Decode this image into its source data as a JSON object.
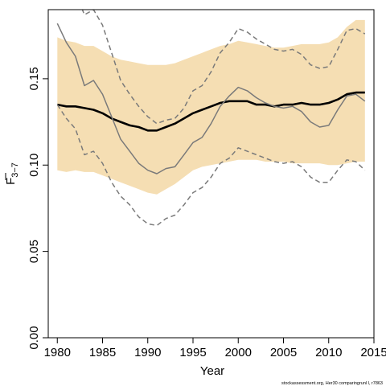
{
  "chart_data": {
    "type": "line",
    "xlabel": "Year",
    "ylabel": "F",
    "ylabel_subscript": "3−7",
    "xlim": [
      1979,
      2015
    ],
    "ylim": [
      0,
      0.19
    ],
    "xticks": [
      "1980",
      "1985",
      "1990",
      "1995",
      "2000",
      "2005",
      "2010",
      "2015"
    ],
    "yticks": [
      "0.00",
      "0.05",
      "0.10",
      "0.15"
    ],
    "grid": false,
    "legend": "none",
    "x": [
      1980,
      1981,
      1982,
      1983,
      1984,
      1985,
      1986,
      1987,
      1988,
      1989,
      1990,
      1991,
      1992,
      1993,
      1994,
      1995,
      1996,
      1997,
      1998,
      1999,
      2000,
      2001,
      2002,
      2003,
      2004,
      2005,
      2006,
      2007,
      2008,
      2009,
      2010,
      2011,
      2012,
      2013,
      2014
    ],
    "series": [
      {
        "role": "confidence band",
        "color": "#f5deb3",
        "lower": [
          0.097,
          0.096,
          0.097,
          0.096,
          0.096,
          0.094,
          0.092,
          0.09,
          0.088,
          0.086,
          0.084,
          0.083,
          0.086,
          0.089,
          0.093,
          0.097,
          0.099,
          0.1,
          0.101,
          0.102,
          0.103,
          0.103,
          0.103,
          0.102,
          0.102,
          0.102,
          0.101,
          0.101,
          0.101,
          0.101,
          0.1,
          0.1,
          0.101,
          0.102,
          0.102
        ],
        "upper": [
          0.174,
          0.172,
          0.171,
          0.169,
          0.169,
          0.166,
          0.163,
          0.161,
          0.16,
          0.159,
          0.158,
          0.158,
          0.158,
          0.159,
          0.161,
          0.163,
          0.165,
          0.167,
          0.169,
          0.17,
          0.172,
          0.171,
          0.17,
          0.169,
          0.168,
          0.168,
          0.169,
          0.17,
          0.17,
          0.17,
          0.171,
          0.174,
          0.18,
          0.184,
          0.184
        ]
      },
      {
        "role": "estimate",
        "color": "#000000",
        "values": [
          0.135,
          0.134,
          0.134,
          0.133,
          0.132,
          0.13,
          0.127,
          0.125,
          0.123,
          0.122,
          0.12,
          0.12,
          0.122,
          0.124,
          0.127,
          0.13,
          0.132,
          0.134,
          0.136,
          0.137,
          0.137,
          0.137,
          0.135,
          0.135,
          0.134,
          0.135,
          0.135,
          0.136,
          0.135,
          0.135,
          0.136,
          0.138,
          0.141,
          0.142,
          0.142
        ]
      },
      {
        "role": "comparison",
        "color": "#7a7a7a",
        "values": [
          0.182,
          0.171,
          0.163,
          0.146,
          0.149,
          0.141,
          0.128,
          0.115,
          0.108,
          0.101,
          0.097,
          0.095,
          0.098,
          0.099,
          0.106,
          0.113,
          0.116,
          0.124,
          0.134,
          0.14,
          0.145,
          0.143,
          0.139,
          0.136,
          0.134,
          0.133,
          0.134,
          0.131,
          0.125,
          0.122,
          0.123,
          0.132,
          0.14,
          0.141,
          0.137
        ]
      },
      {
        "role": "comparison upper",
        "color": "#7a7a7a",
        "dashed": true,
        "values": [
          0.23,
          0.215,
          0.2,
          0.187,
          0.19,
          0.181,
          0.165,
          0.149,
          0.141,
          0.134,
          0.128,
          0.124,
          0.126,
          0.127,
          0.133,
          0.143,
          0.146,
          0.154,
          0.165,
          0.171,
          0.179,
          0.177,
          0.173,
          0.17,
          0.167,
          0.166,
          0.167,
          0.164,
          0.158,
          0.156,
          0.157,
          0.167,
          0.178,
          0.179,
          0.176
        ]
      },
      {
        "role": "comparison lower",
        "color": "#7a7a7a",
        "dashed": true,
        "values": [
          0.135,
          0.127,
          0.121,
          0.106,
          0.108,
          0.101,
          0.09,
          0.082,
          0.077,
          0.07,
          0.066,
          0.065,
          0.069,
          0.071,
          0.077,
          0.084,
          0.087,
          0.093,
          0.101,
          0.104,
          0.11,
          0.108,
          0.106,
          0.104,
          0.102,
          0.101,
          0.102,
          0.099,
          0.093,
          0.09,
          0.09,
          0.097,
          0.103,
          0.102,
          0.097
        ]
      }
    ]
  },
  "footnote": "stockassessment.org,  Her30  comparingrunl  l,  r7863"
}
